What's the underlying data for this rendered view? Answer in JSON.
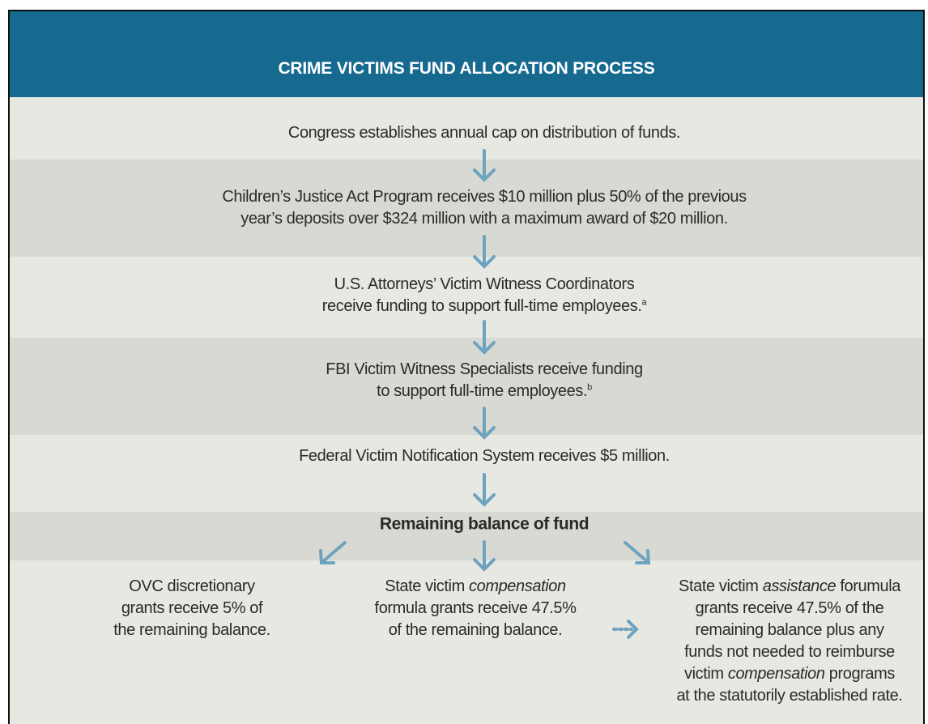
{
  "title": "CRIME VICTIMS FUND ALLOCATION PROCESS",
  "steps": [
    {
      "lines": [
        [
          "Congress establishes annual cap on distribution of funds."
        ]
      ]
    },
    {
      "lines": [
        [
          "Children’s Justice Act Program receives $10 million plus 50% of the previous"
        ],
        [
          "year’s deposits over $324 million with a maximum award of $20 million."
        ]
      ]
    },
    {
      "lines": [
        [
          "U.S. Attorneys’ Victim Witness Coordinators"
        ],
        [
          "receive funding to support full-time employees."
        ]
      ],
      "note": "a"
    },
    {
      "lines": [
        [
          "FBI Victim Witness Specialists receive funding"
        ],
        [
          "to support full-time employees."
        ]
      ],
      "note": "b"
    },
    {
      "lines": [
        [
          "Federal Victim Notification System receives $5 million."
        ]
      ]
    }
  ],
  "balance": "Remaining balance of fund",
  "branches": [
    {
      "lines": [
        [
          "OVC discretionary"
        ],
        [
          "grants receive 5% of"
        ],
        [
          "the remaining balance."
        ]
      ]
    },
    {
      "lines": [
        [
          "State victim ",
          {
            "em": "compensation"
          }
        ],
        [
          "formula grants receive 47.5%"
        ],
        [
          "of the remaining balance."
        ]
      ]
    },
    {
      "lines": [
        [
          "State victim ",
          {
            "em": "assistance"
          },
          " forumula"
        ],
        [
          "grants receive 47.5% of the"
        ],
        [
          "remaining balance plus any"
        ],
        [
          "funds not needed to reimburse"
        ],
        [
          "victim ",
          {
            "em": "compensation"
          },
          " programs"
        ],
        [
          "at the statutorily established rate."
        ]
      ]
    }
  ]
}
